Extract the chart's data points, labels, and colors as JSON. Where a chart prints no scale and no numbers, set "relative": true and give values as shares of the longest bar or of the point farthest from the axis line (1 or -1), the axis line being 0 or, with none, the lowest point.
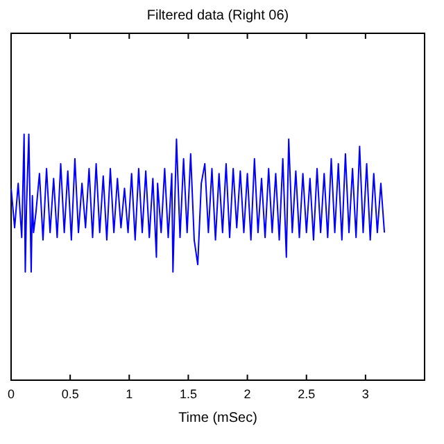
{
  "chart_data": {
    "type": "line",
    "title": "Filtered data (Right 06)",
    "xlabel": "Time (mSec)",
    "relative": true,
    "xlim": [
      0,
      3.5
    ],
    "xticks": [
      0,
      0.5,
      1,
      1.5,
      2,
      2.5,
      3
    ],
    "x": [
      0,
      0.03,
      0.06,
      0.09,
      0.11,
      0.12,
      0.13,
      0.15,
      0.17,
      0.18,
      0.19,
      0.21,
      0.24,
      0.27,
      0.3,
      0.33,
      0.36,
      0.39,
      0.42,
      0.45,
      0.48,
      0.51,
      0.54,
      0.57,
      0.6,
      0.63,
      0.66,
      0.69,
      0.72,
      0.75,
      0.78,
      0.81,
      0.84,
      0.87,
      0.9,
      0.93,
      0.96,
      0.99,
      1.02,
      1.05,
      1.08,
      1.11,
      1.14,
      1.17,
      1.2,
      1.23,
      1.24,
      1.27,
      1.3,
      1.33,
      1.36,
      1.37,
      1.4,
      1.43,
      1.46,
      1.49,
      1.52,
      1.55,
      1.58,
      1.61,
      1.64,
      1.67,
      1.7,
      1.73,
      1.76,
      1.79,
      1.82,
      1.85,
      1.88,
      1.91,
      1.94,
      1.97,
      2.0,
      2.03,
      2.06,
      2.09,
      2.12,
      2.15,
      2.18,
      2.21,
      2.24,
      2.27,
      2.3,
      2.33,
      2.35,
      2.38,
      2.41,
      2.44,
      2.47,
      2.5,
      2.53,
      2.56,
      2.59,
      2.62,
      2.65,
      2.68,
      2.71,
      2.74,
      2.77,
      2.8,
      2.83,
      2.86,
      2.89,
      2.92,
      2.95,
      2.98,
      3.01,
      3.04,
      3.07,
      3.1,
      3.13,
      3.16
    ],
    "series": [
      {
        "color": "#0000ff",
        "values": [
          0.78,
          0.62,
          0.8,
          0.58,
          1.0,
          0.44,
          0.7,
          1.0,
          0.44,
          0.75,
          0.6,
          0.68,
          0.84,
          0.57,
          0.86,
          0.6,
          0.82,
          0.58,
          0.88,
          0.6,
          0.85,
          0.57,
          0.9,
          0.6,
          0.8,
          0.62,
          0.86,
          0.58,
          0.88,
          0.6,
          0.83,
          0.57,
          0.86,
          0.6,
          0.82,
          0.62,
          0.78,
          0.6,
          0.84,
          0.57,
          0.86,
          0.6,
          0.85,
          0.58,
          0.82,
          0.5,
          0.8,
          0.6,
          0.86,
          0.58,
          0.84,
          0.44,
          0.98,
          0.58,
          0.9,
          0.6,
          0.92,
          0.57,
          0.47,
          0.8,
          0.88,
          0.6,
          0.86,
          0.57,
          0.84,
          0.6,
          0.88,
          0.58,
          0.86,
          0.62,
          0.85,
          0.6,
          0.84,
          0.57,
          0.9,
          0.6,
          0.82,
          0.58,
          0.86,
          0.6,
          0.84,
          0.57,
          0.9,
          0.5,
          0.98,
          0.6,
          0.85,
          0.58,
          0.84,
          0.6,
          0.82,
          0.57,
          0.86,
          0.6,
          0.84,
          0.58,
          0.9,
          0.6,
          0.88,
          0.57,
          0.92,
          0.6,
          0.86,
          0.58,
          0.95,
          0.6,
          0.88,
          0.57,
          0.84,
          0.6,
          0.8,
          0.6
        ]
      }
    ]
  }
}
